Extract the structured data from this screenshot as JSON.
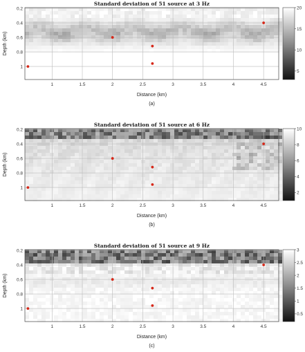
{
  "chart_data": [
    {
      "type": "heatmap",
      "title": "Standard deviation of 51 source at 3 Hz",
      "xlabel": "Distance (km)",
      "ylabel": "Depth (km)",
      "caption": "(a)",
      "xlim": [
        0.55,
        4.75
      ],
      "ylim": [
        0.19,
        1.18
      ],
      "xticks": [
        1,
        1.5,
        2,
        2.5,
        3,
        3.5,
        4,
        4.5
      ],
      "xtick_labels": [
        "1",
        "1.5",
        "2",
        "2.5",
        "3",
        "3.5",
        "4",
        "4.5"
      ],
      "yticks": [
        0.2,
        0.4,
        0.6,
        0.8,
        1
      ],
      "ytick_labels": [
        "0.2",
        "0.4",
        "0.6",
        "0.8",
        "1"
      ],
      "grid": true,
      "colorbar": {
        "min": 3,
        "max": 20,
        "ticks": [
          5,
          10,
          15,
          20
        ],
        "tick_labels": [
          "5",
          "10",
          "15",
          "20"
        ]
      },
      "points": [
        {
          "x": 0.6,
          "y": 1.0
        },
        {
          "x": 2.0,
          "y": 0.6
        },
        {
          "x": 2.66,
          "y": 0.72
        },
        {
          "x": 2.66,
          "y": 0.96
        },
        {
          "x": 4.5,
          "y": 0.4
        }
      ]
    },
    {
      "type": "heatmap",
      "title": "Standard deviation of 51 source at 6 Hz",
      "xlabel": "Distance (km)",
      "ylabel": "Depth (km)",
      "caption": "(b)",
      "xlim": [
        0.55,
        4.75
      ],
      "ylim": [
        0.19,
        1.18
      ],
      "xticks": [
        1,
        1.5,
        2,
        2.5,
        3,
        3.5,
        4,
        4.5
      ],
      "xtick_labels": [
        "1",
        "1.5",
        "2",
        "2.5",
        "3",
        "3.5",
        "4",
        "4.5"
      ],
      "yticks": [
        0.2,
        0.4,
        0.6,
        0.8,
        1
      ],
      "ytick_labels": [
        "0.2",
        "0.4",
        "0.6",
        "0.8",
        "1"
      ],
      "grid": true,
      "colorbar": {
        "min": 1,
        "max": 10,
        "ticks": [
          2,
          4,
          6,
          8,
          10
        ],
        "tick_labels": [
          "2",
          "4",
          "6",
          "8",
          "10"
        ]
      },
      "points": [
        {
          "x": 0.6,
          "y": 1.0
        },
        {
          "x": 2.0,
          "y": 0.6
        },
        {
          "x": 2.66,
          "y": 0.72
        },
        {
          "x": 2.66,
          "y": 0.96
        },
        {
          "x": 4.5,
          "y": 0.4
        }
      ]
    },
    {
      "type": "heatmap",
      "title": "Standard deviation of 51 source at 9 Hz",
      "xlabel": "Distance (km)",
      "ylabel": "Depth (km)",
      "caption": "(c)",
      "xlim": [
        0.55,
        4.75
      ],
      "ylim": [
        0.19,
        1.18
      ],
      "xticks": [
        1,
        1.5,
        2,
        2.5,
        3,
        3.5,
        4,
        4.5
      ],
      "xtick_labels": [
        "1",
        "1.5",
        "2",
        "2.5",
        "3",
        "3.5",
        "4",
        "4.5"
      ],
      "yticks": [
        0.2,
        0.4,
        0.6,
        0.8,
        1
      ],
      "ytick_labels": [
        "0.2",
        "0.4",
        "0.6",
        "0.8",
        "1"
      ],
      "grid": true,
      "colorbar": {
        "min": 0.2,
        "max": 3,
        "ticks": [
          0.5,
          1,
          1.5,
          2,
          2.5,
          3
        ],
        "tick_labels": [
          "0.5",
          "1",
          "1.5",
          "2",
          "2.5",
          "3"
        ]
      },
      "points": [
        {
          "x": 0.6,
          "y": 1.0
        },
        {
          "x": 2.0,
          "y": 0.6
        },
        {
          "x": 2.66,
          "y": 0.72
        },
        {
          "x": 2.66,
          "y": 0.96
        },
        {
          "x": 4.5,
          "y": 0.4
        }
      ]
    }
  ],
  "colors": {
    "marker": "#d62718",
    "grid": "#bbbbbb",
    "frame": "#444444"
  }
}
